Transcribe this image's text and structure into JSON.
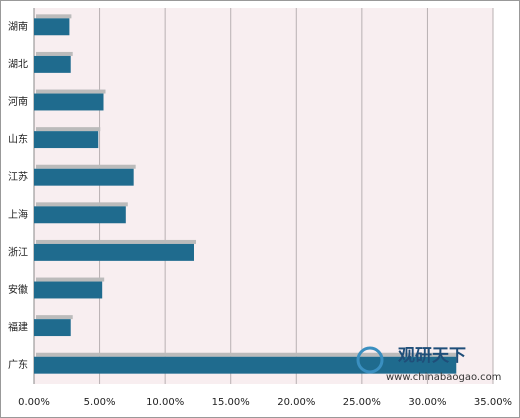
{
  "chart_data": {
    "type": "hbar",
    "categories": [
      "湖南",
      "湖北",
      "河南",
      "山东",
      "江苏",
      "上海",
      "浙江",
      "安徽",
      "福建",
      "广东"
    ],
    "values": [
      2.7,
      2.8,
      5.3,
      4.9,
      7.6,
      7.0,
      12.2,
      5.2,
      2.8,
      32.2
    ],
    "color": "#1f6b8e",
    "xlim": [
      0,
      35
    ],
    "xticks": [
      {
        "value": 0,
        "label": "0.00%"
      },
      {
        "value": 5,
        "label": "5.00%"
      },
      {
        "value": 10,
        "label": "10.00%"
      },
      {
        "value": 15,
        "label": "15.00%"
      },
      {
        "value": 20,
        "label": "20.00%"
      },
      {
        "value": 25,
        "label": "25.00%"
      },
      {
        "value": 30,
        "label": "30.00%"
      },
      {
        "value": 35,
        "label": "35.00%"
      }
    ],
    "grid": true,
    "watermark": {
      "brand": "观研天下",
      "url": "www.chinabaogao.com"
    }
  }
}
